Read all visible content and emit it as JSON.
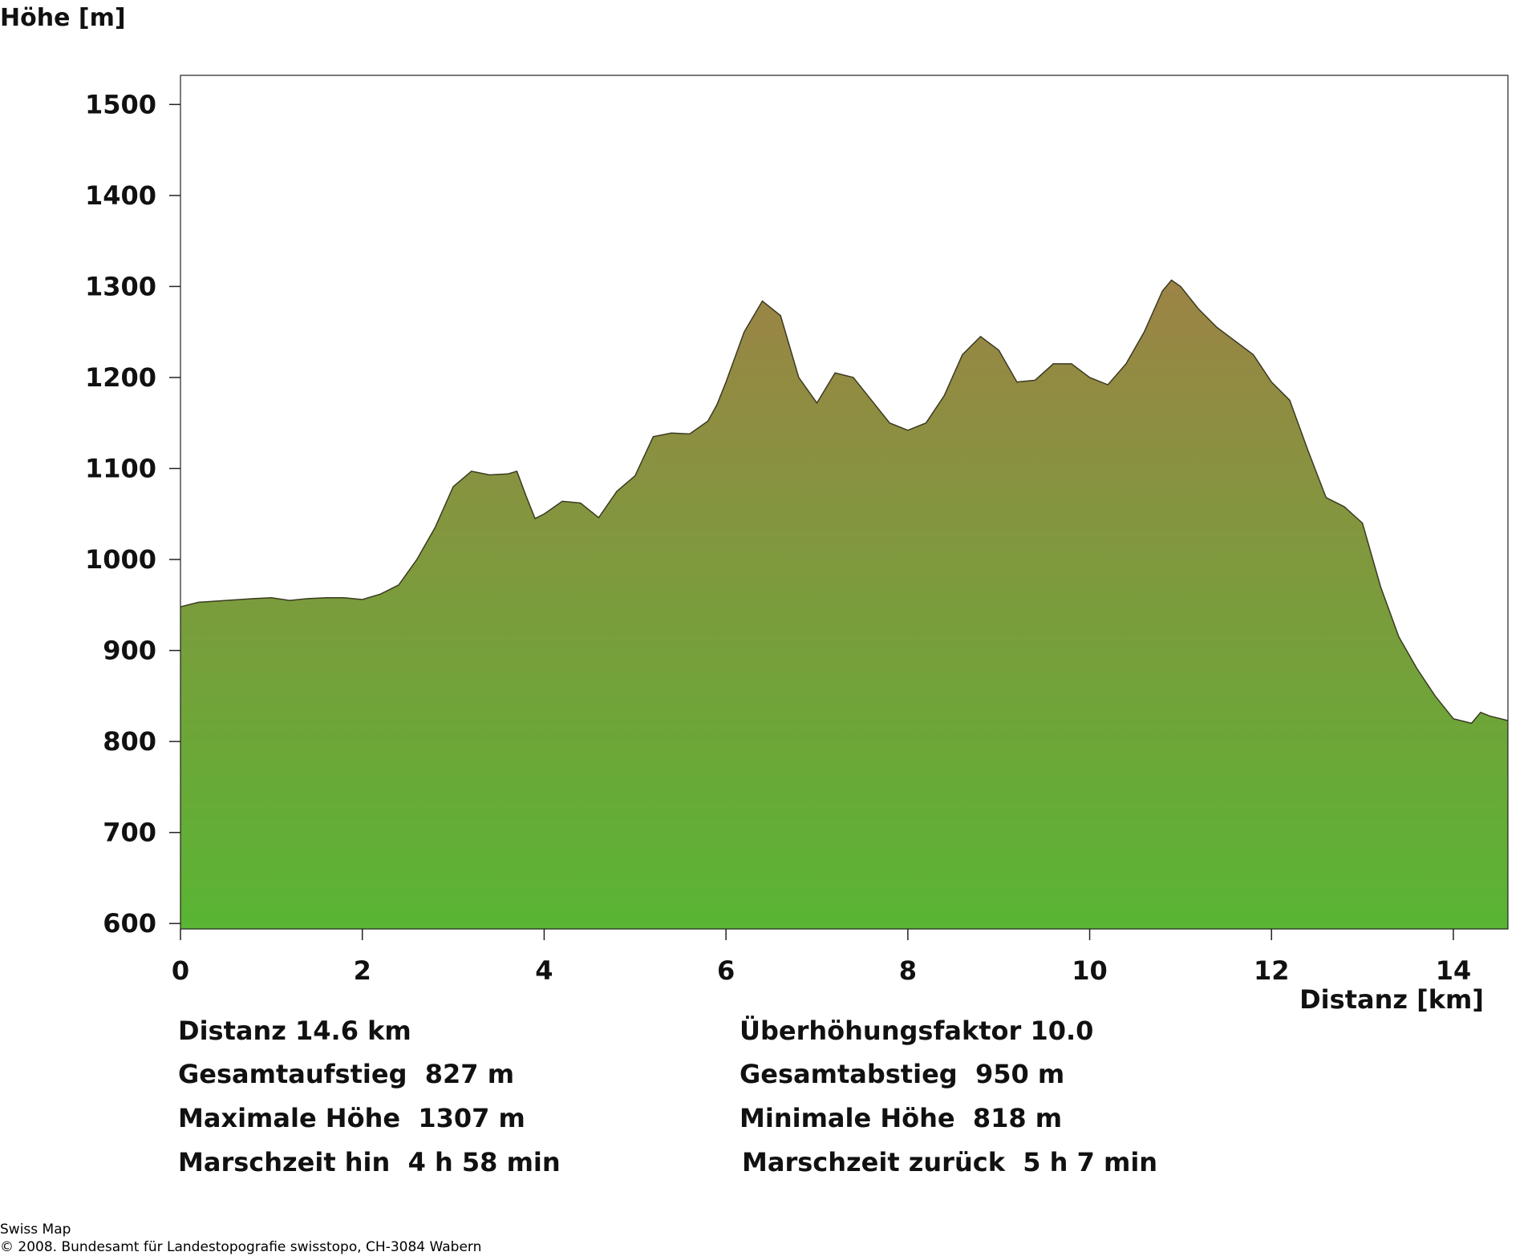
{
  "chart_data": {
    "type": "area",
    "y_label": "Höhe [m]",
    "x_label": "Distanz [km]",
    "x": [
      0,
      0.2,
      0.5,
      0.8,
      1.0,
      1.2,
      1.4,
      1.6,
      1.8,
      2.0,
      2.2,
      2.4,
      2.6,
      2.8,
      3.0,
      3.2,
      3.4,
      3.6,
      3.7,
      3.8,
      3.9,
      4.0,
      4.2,
      4.4,
      4.6,
      4.8,
      5.0,
      5.2,
      5.4,
      5.6,
      5.8,
      5.9,
      6.0,
      6.2,
      6.4,
      6.6,
      6.8,
      7.0,
      7.2,
      7.4,
      7.6,
      7.8,
      8.0,
      8.2,
      8.4,
      8.6,
      8.8,
      9.0,
      9.2,
      9.4,
      9.6,
      9.8,
      10.0,
      10.2,
      10.4,
      10.6,
      10.8,
      10.9,
      11.0,
      11.2,
      11.4,
      11.6,
      11.8,
      12.0,
      12.2,
      12.4,
      12.6,
      12.8,
      13.0,
      13.2,
      13.4,
      13.6,
      13.8,
      14.0,
      14.2,
      14.3,
      14.4,
      14.6
    ],
    "values": [
      948,
      953,
      955,
      957,
      958,
      955,
      957,
      958,
      958,
      956,
      962,
      972,
      1000,
      1035,
      1080,
      1097,
      1093,
      1094,
      1097,
      1070,
      1045,
      1050,
      1064,
      1062,
      1046,
      1075,
      1092,
      1135,
      1139,
      1138,
      1152,
      1170,
      1195,
      1250,
      1284,
      1268,
      1200,
      1172,
      1205,
      1200,
      1175,
      1150,
      1142,
      1150,
      1180,
      1225,
      1245,
      1230,
      1195,
      1197,
      1215,
      1215,
      1200,
      1192,
      1215,
      1250,
      1295,
      1307,
      1300,
      1275,
      1255,
      1240,
      1225,
      1195,
      1175,
      1120,
      1068,
      1058,
      1040,
      970,
      915,
      880,
      850,
      825,
      820,
      832,
      828,
      823
    ],
    "xlim": [
      0,
      14.6
    ],
    "ylim": [
      594,
      1532
    ],
    "xticks": [
      0,
      2,
      4,
      6,
      8,
      10,
      12,
      14
    ],
    "yticks": [
      600,
      700,
      800,
      900,
      1000,
      1100,
      1200,
      1300,
      1400,
      1500
    ],
    "gradient": [
      "#9b8445",
      "#59b533"
    ],
    "line_color": "#3b3a22"
  },
  "stats": {
    "left": [
      "Distanz 14.6 km",
      "Gesamtaufstieg  827 m",
      "Maximale Höhe  1307 m",
      "Marschzeit hin  4 h 58 min"
    ],
    "right": [
      "Überhöhungsfaktor 10.0",
      "Gesamtabstieg  950 m",
      "Minimale Höhe  818 m",
      "Marschzeit zurück  5 h 7 min"
    ]
  },
  "footer": [
    "Swiss Map",
    "© 2008. Bundesamt für Landestopografie swisstopo, CH-3084 Wabern"
  ]
}
